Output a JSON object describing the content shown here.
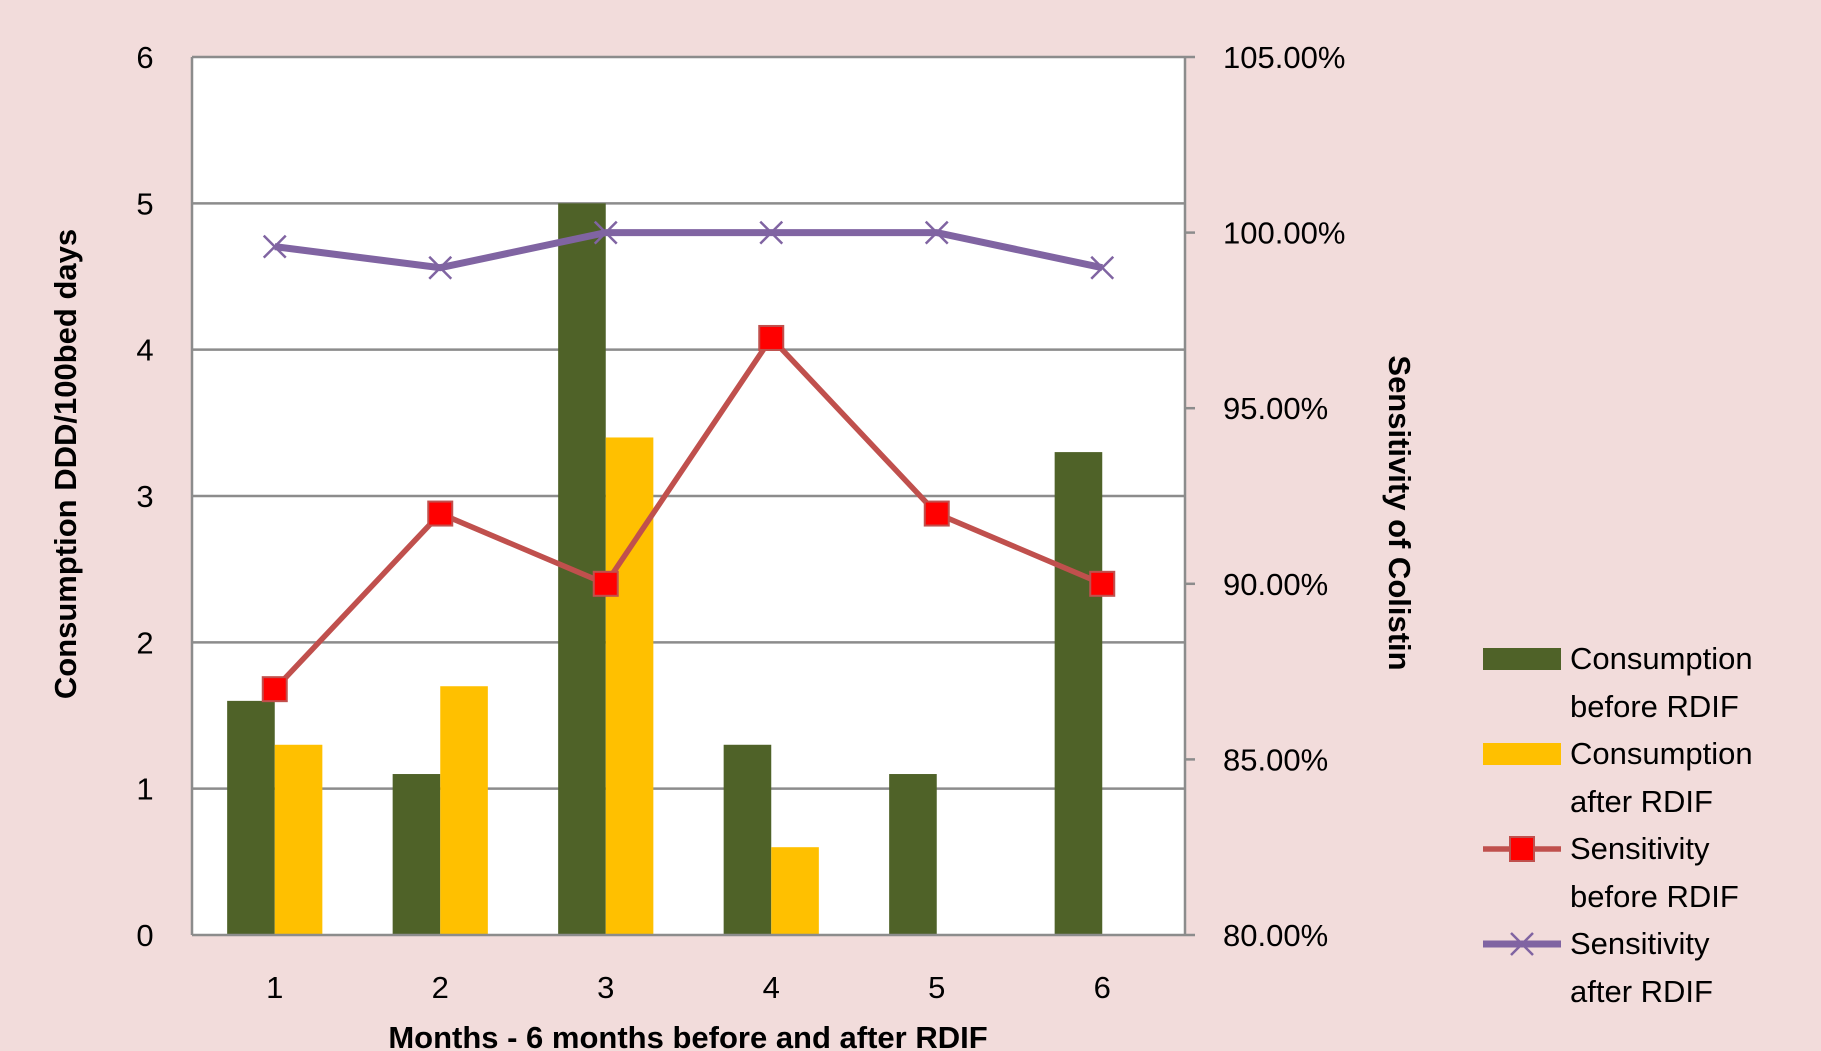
{
  "chart_data": {
    "type": "bar+line",
    "title": "",
    "xlabel": "Months - 6 months before and after RDIF",
    "ylabel": "Consumption  DDD/100bed days",
    "y2label": "Sensitivity  of  Colistin",
    "categories": [
      "1",
      "2",
      "3",
      "4",
      "5",
      "6"
    ],
    "ylim": [
      0,
      6
    ],
    "yticks": [
      "0",
      "1",
      "2",
      "3",
      "4",
      "5",
      "6"
    ],
    "y2lim": [
      80,
      105
    ],
    "y2ticks": [
      "80.00%",
      "85.00%",
      "90.00%",
      "95.00%",
      "100.00%",
      "105.00%"
    ],
    "grid": true,
    "legend_position": "right",
    "series": [
      {
        "name": "Consumption before RDIF",
        "legend_lines": [
          "Consumption",
          "before RDIF"
        ],
        "type": "bar",
        "axis": "left",
        "color": "#4f6228",
        "values": [
          1.6,
          1.1,
          5.0,
          1.3,
          1.1,
          3.3
        ]
      },
      {
        "name": "Consumption after RDIF",
        "legend_lines": [
          "Consumption",
          "after RDIF"
        ],
        "type": "bar",
        "axis": "left",
        "color": "#ffc000",
        "values": [
          1.3,
          1.7,
          3.4,
          0.6,
          null,
          null
        ]
      },
      {
        "name": "Sensitivity before RDIF",
        "legend_lines": [
          "Sensitivity",
          "before RDIF"
        ],
        "type": "line",
        "marker": "square",
        "axis": "right",
        "color": "#c0504d",
        "marker_color": "#ff0000",
        "values": [
          87,
          92,
          90,
          97,
          92,
          90
        ]
      },
      {
        "name": "Sensitivity after RDIF",
        "legend_lines": [
          "Sensitivity",
          "after RDIF"
        ],
        "type": "line",
        "marker": "x",
        "axis": "right",
        "color": "#8064a2",
        "values": [
          99.6,
          99,
          100,
          100,
          100,
          99
        ]
      }
    ]
  }
}
